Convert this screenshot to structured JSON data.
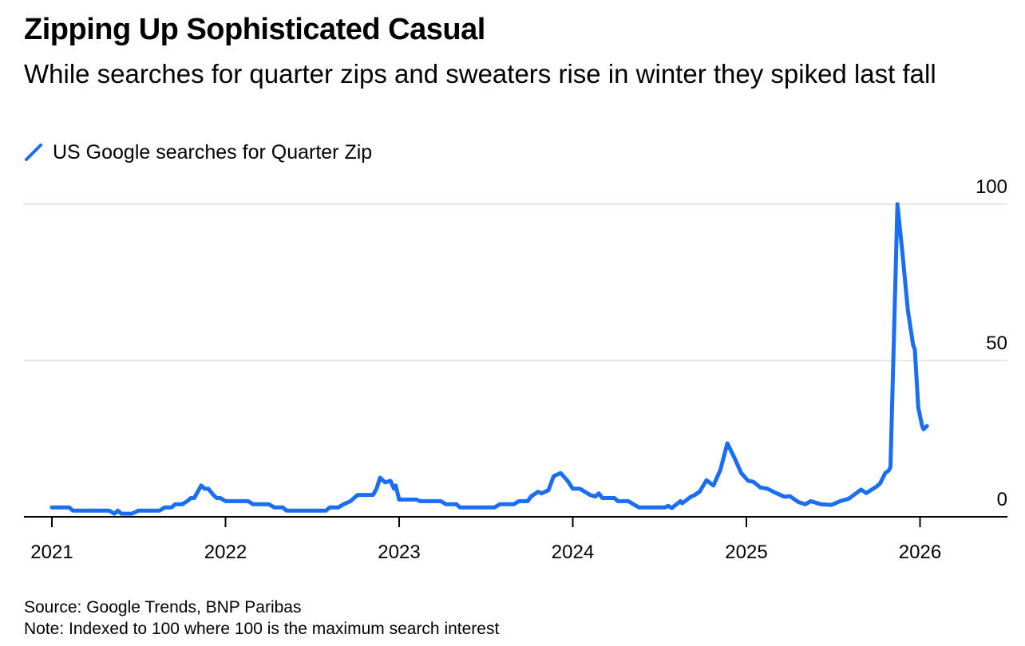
{
  "header": {
    "title": "Zipping Up Sophisticated Casual",
    "subtitle": "While searches for quarter zips and sweaters rise in winter they spiked last fall"
  },
  "legend": {
    "label": "US Google searches for Quarter Zip",
    "icon": "diagonal-line-swatch"
  },
  "footer": {
    "source": "Source: Google Trends, BNP Paribas",
    "note": "Note: Indexed to 100 where 100 is the maximum search interest"
  },
  "colors": {
    "series": "#1a6ef5",
    "grid": "#e8e8e8",
    "axis": "#000000"
  },
  "chart_data": {
    "type": "line",
    "title": "Zipping Up Sophisticated Casual",
    "subtitle": "While searches for quarter zips and sweaters rise in winter they spiked last fall",
    "xlabel": "",
    "ylabel": "",
    "xlim": [
      2020.85,
      2026.55
    ],
    "ylim": [
      0,
      100
    ],
    "x_ticks": [
      2021,
      2022,
      2023,
      2024,
      2025,
      2026
    ],
    "x_tick_labels": [
      "2021",
      "2022",
      "2023",
      "2024",
      "2025",
      "2026"
    ],
    "y_ticks": [
      0,
      50,
      100
    ],
    "y_tick_labels": [
      "0",
      "50",
      "100"
    ],
    "y_axis_side": "right",
    "grid": true,
    "legend_position": "top-left",
    "series": [
      {
        "name": "US Google searches for Quarter Zip",
        "points": [
          [
            2021.0,
            3
          ],
          [
            2021.1,
            3
          ],
          [
            2021.12,
            2
          ],
          [
            2021.33,
            2
          ],
          [
            2021.36,
            1
          ],
          [
            2021.38,
            2
          ],
          [
            2021.4,
            1
          ],
          [
            2021.46,
            1
          ],
          [
            2021.5,
            2
          ],
          [
            2021.62,
            2
          ],
          [
            2021.65,
            3
          ],
          [
            2021.69,
            3
          ],
          [
            2021.71,
            4
          ],
          [
            2021.75,
            4
          ],
          [
            2021.78,
            5
          ],
          [
            2021.8,
            6
          ],
          [
            2021.82,
            6
          ],
          [
            2021.84,
            8
          ],
          [
            2021.86,
            10
          ],
          [
            2021.88,
            9
          ],
          [
            2021.9,
            9
          ],
          [
            2021.93,
            7
          ],
          [
            2021.95,
            6
          ],
          [
            2021.97,
            6
          ],
          [
            2022.0,
            5
          ],
          [
            2022.13,
            5
          ],
          [
            2022.16,
            4
          ],
          [
            2022.25,
            4
          ],
          [
            2022.28,
            3
          ],
          [
            2022.33,
            3
          ],
          [
            2022.35,
            2
          ],
          [
            2022.58,
            2
          ],
          [
            2022.6,
            3
          ],
          [
            2022.65,
            3
          ],
          [
            2022.68,
            4
          ],
          [
            2022.72,
            5
          ],
          [
            2022.76,
            7
          ],
          [
            2022.85,
            7
          ],
          [
            2022.87,
            9
          ],
          [
            2022.89,
            12.5
          ],
          [
            2022.92,
            11
          ],
          [
            2022.95,
            11.5
          ],
          [
            2022.97,
            9
          ],
          [
            2022.98,
            10
          ],
          [
            2023.0,
            5.5
          ],
          [
            2023.1,
            5.5
          ],
          [
            2023.12,
            5
          ],
          [
            2023.24,
            5
          ],
          [
            2023.27,
            4
          ],
          [
            2023.33,
            4
          ],
          [
            2023.35,
            3
          ],
          [
            2023.55,
            3
          ],
          [
            2023.58,
            4
          ],
          [
            2023.66,
            4
          ],
          [
            2023.69,
            5
          ],
          [
            2023.74,
            5
          ],
          [
            2023.76,
            6.5
          ],
          [
            2023.8,
            8
          ],
          [
            2023.82,
            7.5
          ],
          [
            2023.86,
            8.5
          ],
          [
            2023.89,
            13
          ],
          [
            2023.93,
            14
          ],
          [
            2023.97,
            11.5
          ],
          [
            2024.0,
            9
          ],
          [
            2024.04,
            9
          ],
          [
            2024.07,
            8
          ],
          [
            2024.1,
            7
          ],
          [
            2024.13,
            6.5
          ],
          [
            2024.15,
            7.5
          ],
          [
            2024.17,
            6
          ],
          [
            2024.24,
            6
          ],
          [
            2024.26,
            5
          ],
          [
            2024.32,
            5
          ],
          [
            2024.35,
            4
          ],
          [
            2024.38,
            3
          ],
          [
            2024.53,
            3
          ],
          [
            2024.55,
            3.5
          ],
          [
            2024.57,
            2.8
          ],
          [
            2024.62,
            5
          ],
          [
            2024.63,
            4.3
          ],
          [
            2024.68,
            6.4
          ],
          [
            2024.7,
            6.9
          ],
          [
            2024.73,
            8
          ],
          [
            2024.77,
            11.7
          ],
          [
            2024.81,
            10
          ],
          [
            2024.85,
            15
          ],
          [
            2024.89,
            23.5
          ],
          [
            2024.93,
            19
          ],
          [
            2024.97,
            14
          ],
          [
            2025.01,
            11.5
          ],
          [
            2025.04,
            11.2
          ],
          [
            2025.08,
            9.4
          ],
          [
            2025.12,
            9
          ],
          [
            2025.17,
            7.6
          ],
          [
            2025.22,
            6.4
          ],
          [
            2025.25,
            6.6
          ],
          [
            2025.3,
            4.7
          ],
          [
            2025.34,
            4
          ],
          [
            2025.37,
            5
          ],
          [
            2025.43,
            4
          ],
          [
            2025.49,
            3.8
          ],
          [
            2025.54,
            5
          ],
          [
            2025.59,
            5.8
          ],
          [
            2025.66,
            8.7
          ],
          [
            2025.69,
            7.6
          ],
          [
            2025.75,
            9.7
          ],
          [
            2025.77,
            10.7
          ],
          [
            2025.8,
            14
          ],
          [
            2025.82,
            14.8
          ],
          [
            2025.83,
            16
          ],
          [
            2025.87,
            100
          ],
          [
            2025.9,
            83.5
          ],
          [
            2025.93,
            66
          ],
          [
            2025.96,
            55
          ],
          [
            2025.97,
            53.5
          ],
          [
            2025.99,
            35
          ],
          [
            2026.01,
            29.5
          ],
          [
            2026.02,
            28
          ],
          [
            2026.04,
            29
          ]
        ]
      }
    ]
  }
}
